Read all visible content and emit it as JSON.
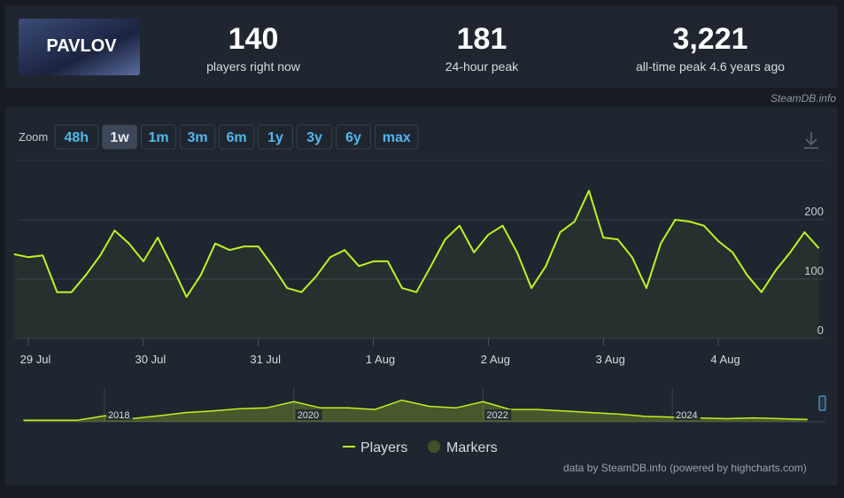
{
  "header": {
    "game_title": "PAVLOV",
    "stats": [
      {
        "value": 140,
        "label": "players right now"
      },
      {
        "value": 181,
        "label": "24-hour peak"
      },
      {
        "value": "3,221",
        "label": "all-time peak 4.6 years ago"
      }
    ]
  },
  "source": "SteamDB.info",
  "zoom": {
    "label": "Zoom",
    "buttons": [
      "48h",
      "1w",
      "1m",
      "3m",
      "6m",
      "1y",
      "3y",
      "6y",
      "max"
    ],
    "active": 1
  },
  "chart_data": [
    {
      "type": "line",
      "categories": [
        null,
        "29 Jul",
        null,
        null,
        null,
        null,
        null,
        null,
        null,
        "30 Jul",
        null,
        null,
        null,
        null,
        null,
        null,
        null,
        "31 Jul",
        null,
        null,
        null,
        null,
        null,
        null,
        null,
        "1 Aug",
        null,
        null,
        null,
        null,
        null,
        null,
        null,
        "2 Aug",
        null,
        null,
        null,
        null,
        null,
        null,
        null,
        "3 Aug",
        null,
        null,
        null,
        null,
        null,
        null,
        null,
        "4 Aug",
        null,
        null,
        null,
        null,
        null,
        null,
        null
      ],
      "series": [
        {
          "name": "Players",
          "color": "#c4f01e",
          "values": [
            142,
            137,
            140,
            78,
            78,
            107,
            140,
            182,
            160,
            130,
            170,
            122,
            70,
            107,
            160,
            149,
            155,
            155,
            122,
            85,
            78,
            104,
            137,
            149,
            122,
            130,
            130,
            85,
            78,
            122,
            167,
            190,
            145,
            175,
            190,
            145,
            85,
            122,
            179,
            197,
            249,
            170,
            167,
            137,
            85,
            160,
            200,
            197,
            190,
            164,
            145,
            107,
            78,
            115,
            145,
            179,
            152
          ]
        }
      ],
      "markers": {
        "name": "Markers",
        "color": "#3d5226"
      },
      "ylim": [
        0,
        300
      ],
      "yticks": [
        0,
        100,
        200
      ],
      "grid": true
    },
    {
      "type": "area",
      "categories": [
        null,
        null,
        null,
        "2018",
        null,
        null,
        null,
        null,
        null,
        null,
        "2020",
        null,
        null,
        null,
        null,
        null,
        null,
        "2022",
        null,
        null,
        null,
        null,
        null,
        null,
        "2024",
        null,
        null,
        null,
        null,
        null
      ],
      "series": [
        {
          "name": "Players",
          "color": "#c4f01e",
          "values": [
            180,
            180,
            180,
            700,
            360,
            700,
            1070,
            1250,
            1520,
            1610,
            2330,
            1610,
            1610,
            1430,
            2500,
            1790,
            1610,
            2330,
            1430,
            1430,
            1250,
            1070,
            900,
            630,
            540,
            450,
            360,
            450,
            360,
            270
          ]
        }
      ],
      "ylim": [
        0,
        4000
      ]
    }
  ],
  "credit": "data by SteamDB.info (powered by highcharts.com)"
}
